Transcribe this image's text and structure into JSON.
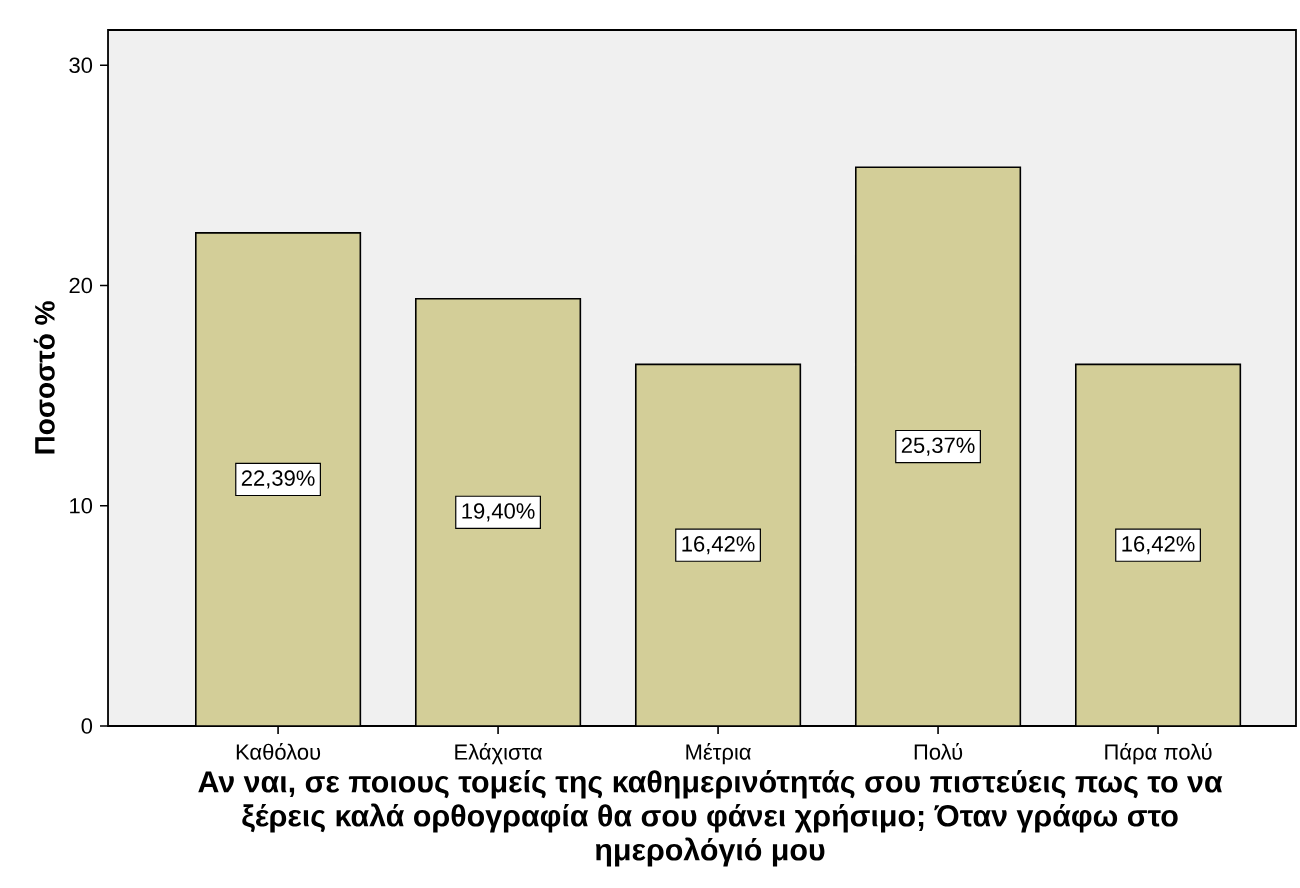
{
  "chart_data": {
    "type": "bar",
    "xlabel": "Αν ναι, σε ποιους τομείς της καθημερινότητάς σου πιστεύεις πως το να ξέρεις καλά ορθογραφία θα σου φάνει χρήσιμο; Όταν γράφω στο ημερολόγιό μου",
    "ylabel": "Ποσοστό %",
    "categories": [
      "Καθόλου",
      "Ελάχιστα",
      "Μέτρια",
      "Πολύ",
      "Πάρα πολύ"
    ],
    "values": [
      22.39,
      19.4,
      16.42,
      25.37,
      16.42
    ],
    "value_labels": [
      "22,39%",
      "19,40%",
      "16,42%",
      "25,37%",
      "16,42%"
    ],
    "color": "#d3ce98",
    "ylim": [
      0,
      31.6
    ],
    "yticks": [
      0,
      10,
      20,
      30
    ]
  }
}
